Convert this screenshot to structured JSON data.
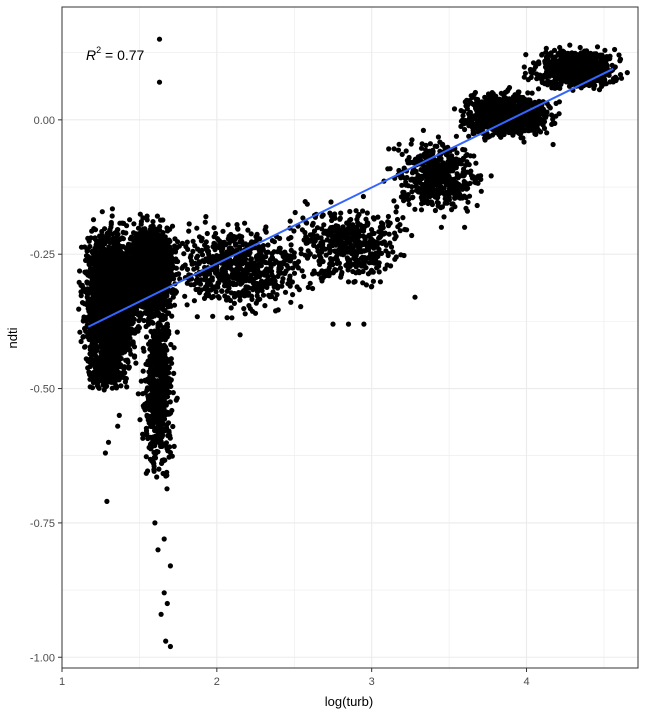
{
  "chart_data": {
    "type": "scatter",
    "xlabel": "log(turb)",
    "ylabel": "ndti",
    "xlim": [
      1.0,
      4.72
    ],
    "ylim": [
      -1.02,
      0.21
    ],
    "x_ticks": [
      1,
      2,
      3,
      4
    ],
    "x_tick_labels": [
      "1",
      "2",
      "3",
      "4"
    ],
    "y_ticks": [
      0.0,
      -0.25,
      -0.5,
      -0.75,
      -1.0
    ],
    "y_tick_labels": [
      "0.00",
      "-0.25",
      "-0.50",
      "-0.75",
      "-1.00"
    ],
    "x_minor_ticks": [
      1.5,
      2.5,
      3.5,
      4.5
    ],
    "y_minor_ticks": [
      0.125,
      -0.125,
      -0.375,
      -0.625,
      -0.875
    ],
    "grid": true,
    "annotation": {
      "r_symbol": "R",
      "r_exponent": "2",
      "value_text": " = 0.77"
    },
    "regression": {
      "x": [
        1.17,
        4.56
      ],
      "y": [
        -0.385,
        0.095
      ],
      "color": "#3366FF"
    },
    "point_color": "#000000",
    "background": "#FFFFFF",
    "grid_color": "#EBEBEB",
    "clusters": [
      {
        "name": "main-dense-left",
        "n": 2200,
        "x": [
          1.15,
          1.48
        ],
        "y": [
          -0.46,
          -0.21
        ]
      },
      {
        "name": "main-dense-mid",
        "n": 1800,
        "x": [
          1.42,
          1.72
        ],
        "y": [
          -0.36,
          -0.2
        ]
      },
      {
        "name": "lower-tail-left",
        "n": 220,
        "x": [
          1.17,
          1.4
        ],
        "y": [
          -0.5,
          -0.44
        ]
      },
      {
        "name": "vertical-spike",
        "n": 650,
        "x": [
          1.53,
          1.72
        ],
        "y": [
          -0.65,
          -0.34
        ]
      },
      {
        "name": "band-1-8-2-5",
        "n": 650,
        "x": [
          1.75,
          2.55
        ],
        "y": [
          -0.35,
          -0.2
        ]
      },
      {
        "name": "band-2-5-3-2",
        "n": 450,
        "x": [
          2.5,
          3.2
        ],
        "y": [
          -0.3,
          -0.16
        ]
      },
      {
        "name": "band-3-2-3-7",
        "n": 500,
        "x": [
          3.15,
          3.7
        ],
        "y": [
          -0.17,
          -0.04
        ]
      },
      {
        "name": "upper-right",
        "n": 950,
        "x": [
          3.6,
          4.15
        ],
        "y": [
          -0.03,
          0.05
        ]
      },
      {
        "name": "top-right",
        "n": 650,
        "x": [
          4.05,
          4.58
        ],
        "y": [
          0.06,
          0.13
        ]
      }
    ],
    "outliers": [
      [
        1.63,
        0.15
      ],
      [
        1.63,
        0.07
      ],
      [
        1.29,
        -0.71
      ],
      [
        1.3,
        -0.6
      ],
      [
        1.28,
        -0.62
      ],
      [
        1.37,
        -0.55
      ],
      [
        1.36,
        -0.57
      ],
      [
        1.64,
        -0.92
      ],
      [
        1.68,
        -0.9
      ],
      [
        1.7,
        -0.98
      ],
      [
        1.67,
        -0.97
      ],
      [
        1.66,
        -0.88
      ],
      [
        1.62,
        -0.8
      ],
      [
        1.66,
        -0.78
      ],
      [
        1.7,
        -0.83
      ],
      [
        1.6,
        -0.75
      ],
      [
        3.28,
        -0.33
      ],
      [
        3.1,
        -0.27
      ],
      [
        3.0,
        -0.31
      ],
      [
        2.95,
        -0.38
      ],
      [
        2.85,
        -0.38
      ],
      [
        2.75,
        -0.38
      ],
      [
        2.25,
        -0.36
      ],
      [
        2.15,
        -0.4
      ],
      [
        3.6,
        -0.2
      ],
      [
        3.45,
        -0.2
      ]
    ]
  }
}
